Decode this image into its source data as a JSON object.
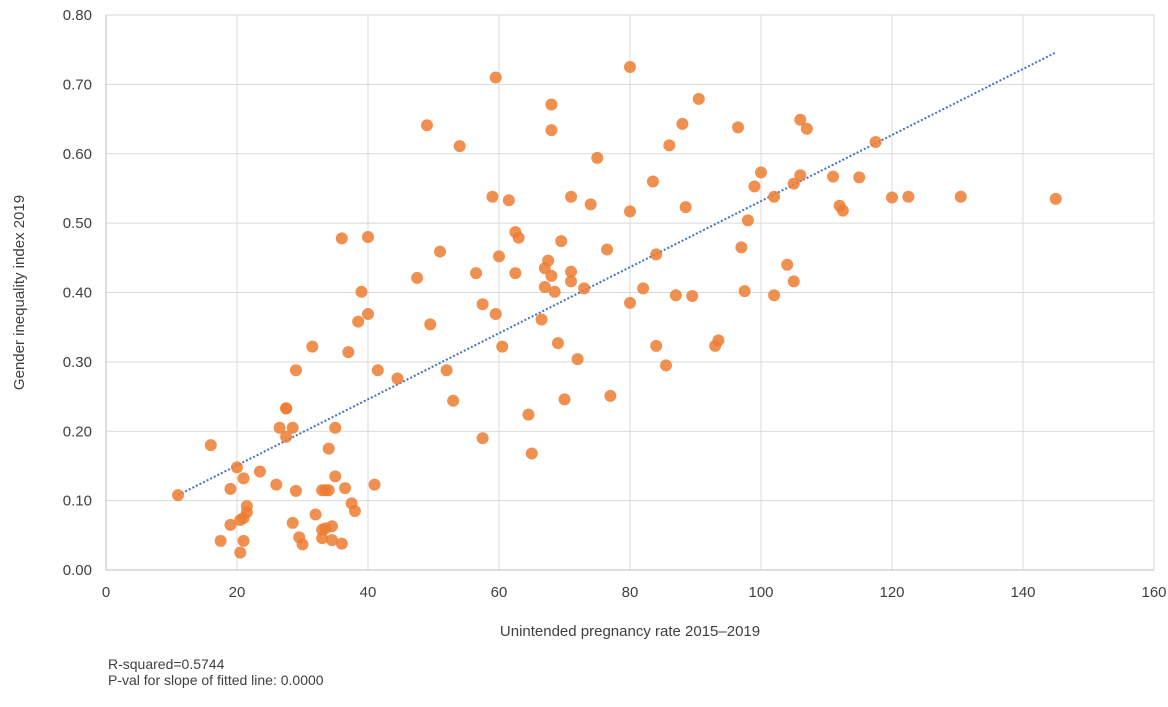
{
  "chart_data": {
    "type": "scatter",
    "title": "",
    "xlabel": "Unintended pregnancy rate 2015–2019",
    "ylabel": "Gender inequality index 2019",
    "xlim": [
      0,
      160
    ],
    "ylim": [
      0,
      0.8
    ],
    "xticks": [
      0,
      20,
      40,
      60,
      80,
      100,
      120,
      140,
      160
    ],
    "yticks": [
      0,
      0.1,
      0.2,
      0.3,
      0.4,
      0.5,
      0.6,
      0.7,
      0.8
    ],
    "xtick_labels": [
      "0",
      "20",
      "40",
      "60",
      "80",
      "100",
      "120",
      "140",
      "160"
    ],
    "ytick_labels": [
      "0.00",
      "0.10",
      "0.20",
      "0.30",
      "0.40",
      "0.50",
      "0.60",
      "0.70",
      "0.80"
    ],
    "grid": true,
    "legend": "none",
    "point_color": "#ED7D31",
    "trend_color": "#4472C4",
    "trendline": {
      "type": "linear",
      "x": [
        11,
        145
      ],
      "y": [
        0.108,
        0.746
      ],
      "style": "dotted"
    },
    "points": [
      [
        11,
        0.108
      ],
      [
        16,
        0.18
      ],
      [
        17.5,
        0.042
      ],
      [
        19,
        0.117
      ],
      [
        19,
        0.065
      ],
      [
        20,
        0.148
      ],
      [
        20.5,
        0.025
      ],
      [
        20.5,
        0.072
      ],
      [
        21,
        0.132
      ],
      [
        21,
        0.042
      ],
      [
        21.5,
        0.083
      ],
      [
        21.5,
        0.092
      ],
      [
        21,
        0.075
      ],
      [
        23.5,
        0.142
      ],
      [
        26,
        0.123
      ],
      [
        26.5,
        0.205
      ],
      [
        27.5,
        0.233
      ],
      [
        27.5,
        0.233
      ],
      [
        27.5,
        0.192
      ],
      [
        28.5,
        0.068
      ],
      [
        28.5,
        0.205
      ],
      [
        29,
        0.288
      ],
      [
        29,
        0.114
      ],
      [
        29.5,
        0.047
      ],
      [
        30,
        0.037
      ],
      [
        31.5,
        0.322
      ],
      [
        32,
        0.08
      ],
      [
        33,
        0.058
      ],
      [
        33,
        0.046
      ],
      [
        33,
        0.115
      ],
      [
        33.5,
        0.06
      ],
      [
        33.5,
        0.115
      ],
      [
        34,
        0.115
      ],
      [
        34,
        0.175
      ],
      [
        34.5,
        0.043
      ],
      [
        34.5,
        0.063
      ],
      [
        35,
        0.205
      ],
      [
        35,
        0.135
      ],
      [
        36,
        0.478
      ],
      [
        36,
        0.038
      ],
      [
        36.5,
        0.118
      ],
      [
        37,
        0.314
      ],
      [
        37.5,
        0.096
      ],
      [
        38,
        0.085
      ],
      [
        38.5,
        0.358
      ],
      [
        39,
        0.401
      ],
      [
        40,
        0.369
      ],
      [
        40,
        0.48
      ],
      [
        41,
        0.123
      ],
      [
        41.5,
        0.288
      ],
      [
        44.5,
        0.276
      ],
      [
        47.5,
        0.421
      ],
      [
        49,
        0.641
      ],
      [
        49.5,
        0.354
      ],
      [
        51,
        0.459
      ],
      [
        52,
        0.288
      ],
      [
        53,
        0.244
      ],
      [
        54,
        0.611
      ],
      [
        56.5,
        0.428
      ],
      [
        57.5,
        0.383
      ],
      [
        57.5,
        0.19
      ],
      [
        59,
        0.538
      ],
      [
        59.5,
        0.71
      ],
      [
        59.5,
        0.369
      ],
      [
        60,
        0.452
      ],
      [
        60.5,
        0.322
      ],
      [
        61.5,
        0.533
      ],
      [
        62.5,
        0.487
      ],
      [
        62.5,
        0.428
      ],
      [
        63,
        0.479
      ],
      [
        64.5,
        0.224
      ],
      [
        65,
        0.168
      ],
      [
        66.5,
        0.361
      ],
      [
        67,
        0.435
      ],
      [
        67,
        0.408
      ],
      [
        67.5,
        0.446
      ],
      [
        68,
        0.671
      ],
      [
        68,
        0.634
      ],
      [
        68,
        0.424
      ],
      [
        68.5,
        0.401
      ],
      [
        69,
        0.327
      ],
      [
        69.5,
        0.474
      ],
      [
        70,
        0.246
      ],
      [
        71,
        0.538
      ],
      [
        71,
        0.43
      ],
      [
        71,
        0.416
      ],
      [
        72,
        0.304
      ],
      [
        73,
        0.406
      ],
      [
        74,
        0.527
      ],
      [
        75,
        0.594
      ],
      [
        76.5,
        0.462
      ],
      [
        77,
        0.251
      ],
      [
        80,
        0.725
      ],
      [
        80,
        0.517
      ],
      [
        80,
        0.385
      ],
      [
        82,
        0.406
      ],
      [
        83.5,
        0.56
      ],
      [
        84,
        0.455
      ],
      [
        84,
        0.323
      ],
      [
        85.5,
        0.295
      ],
      [
        86,
        0.612
      ],
      [
        87,
        0.396
      ],
      [
        88,
        0.643
      ],
      [
        88.5,
        0.523
      ],
      [
        89.5,
        0.395
      ],
      [
        90.5,
        0.679
      ],
      [
        93,
        0.323
      ],
      [
        93.5,
        0.331
      ],
      [
        96.5,
        0.638
      ],
      [
        97,
        0.465
      ],
      [
        97.5,
        0.402
      ],
      [
        98,
        0.504
      ],
      [
        99,
        0.553
      ],
      [
        100,
        0.573
      ],
      [
        102,
        0.538
      ],
      [
        102,
        0.396
      ],
      [
        104,
        0.44
      ],
      [
        105,
        0.557
      ],
      [
        105,
        0.416
      ],
      [
        106,
        0.649
      ],
      [
        106,
        0.569
      ],
      [
        107,
        0.636
      ],
      [
        111,
        0.567
      ],
      [
        112,
        0.525
      ],
      [
        112.5,
        0.518
      ],
      [
        115,
        0.566
      ],
      [
        117.5,
        0.617
      ],
      [
        120,
        0.537
      ],
      [
        122.5,
        0.538
      ],
      [
        130.5,
        0.538
      ],
      [
        145,
        0.535
      ]
    ]
  },
  "stats": {
    "r_squared": "R-squared=0.5744",
    "p_value": "P-val for slope of fitted line: 0.0000"
  }
}
